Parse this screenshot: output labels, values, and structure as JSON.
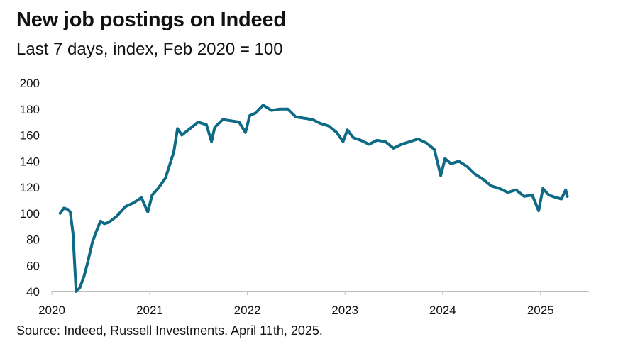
{
  "chart_data": {
    "type": "line",
    "title": "New job postings on Indeed",
    "subtitle": "Last 7 days, index, Feb 2020 = 100",
    "source": "Source: Indeed, Russell Investments. April 11th, 2025.",
    "xlabel": "",
    "ylabel": "",
    "xlim": [
      "2020-01-01",
      "2025-07-01"
    ],
    "ylim": [
      40,
      200
    ],
    "x_ticks": [
      "2020",
      "2021",
      "2022",
      "2023",
      "2024",
      "2025"
    ],
    "y_ticks": [
      "40",
      "60",
      "80",
      "100",
      "120",
      "140",
      "160",
      "180",
      "200"
    ],
    "grid": false,
    "line_color": "#0e6a85",
    "series": [
      {
        "points": [
          [
            "2020-02-01",
            100
          ],
          [
            "2020-02-15",
            104
          ],
          [
            "2020-03-01",
            103
          ],
          [
            "2020-03-10",
            101
          ],
          [
            "2020-03-20",
            85
          ],
          [
            "2020-04-01",
            40
          ],
          [
            "2020-04-15",
            43
          ],
          [
            "2020-05-01",
            52
          ],
          [
            "2020-05-15",
            63
          ],
          [
            "2020-06-01",
            78
          ],
          [
            "2020-06-15",
            86
          ],
          [
            "2020-07-01",
            94
          ],
          [
            "2020-07-15",
            92
          ],
          [
            "2020-08-01",
            93
          ],
          [
            "2020-09-01",
            98
          ],
          [
            "2020-10-01",
            105
          ],
          [
            "2020-11-01",
            108
          ],
          [
            "2020-12-01",
            112
          ],
          [
            "2020-12-25",
            101
          ],
          [
            "2021-01-10",
            114
          ],
          [
            "2021-02-01",
            119
          ],
          [
            "2021-03-01",
            127
          ],
          [
            "2021-04-01",
            147
          ],
          [
            "2021-04-15",
            165
          ],
          [
            "2021-05-01",
            160
          ],
          [
            "2021-06-01",
            165
          ],
          [
            "2021-07-01",
            170
          ],
          [
            "2021-08-01",
            168
          ],
          [
            "2021-08-20",
            155
          ],
          [
            "2021-09-01",
            166
          ],
          [
            "2021-10-01",
            172
          ],
          [
            "2021-11-01",
            171
          ],
          [
            "2021-12-01",
            170
          ],
          [
            "2021-12-25",
            162
          ],
          [
            "2022-01-10",
            175
          ],
          [
            "2022-02-01",
            177
          ],
          [
            "2022-03-01",
            183
          ],
          [
            "2022-04-01",
            179
          ],
          [
            "2022-05-01",
            180
          ],
          [
            "2022-06-01",
            180
          ],
          [
            "2022-07-01",
            174
          ],
          [
            "2022-08-01",
            173
          ],
          [
            "2022-09-01",
            172
          ],
          [
            "2022-10-01",
            169
          ],
          [
            "2022-11-01",
            167
          ],
          [
            "2022-12-01",
            162
          ],
          [
            "2022-12-25",
            155
          ],
          [
            "2023-01-10",
            164
          ],
          [
            "2023-02-01",
            158
          ],
          [
            "2023-03-01",
            156
          ],
          [
            "2023-04-01",
            153
          ],
          [
            "2023-05-01",
            156
          ],
          [
            "2023-06-01",
            155
          ],
          [
            "2023-07-01",
            150
          ],
          [
            "2023-08-01",
            153
          ],
          [
            "2023-09-01",
            155
          ],
          [
            "2023-10-01",
            157
          ],
          [
            "2023-11-01",
            154
          ],
          [
            "2023-12-01",
            149
          ],
          [
            "2023-12-25",
            129
          ],
          [
            "2024-01-10",
            142
          ],
          [
            "2024-02-01",
            138
          ],
          [
            "2024-03-01",
            140
          ],
          [
            "2024-04-01",
            136
          ],
          [
            "2024-05-01",
            130
          ],
          [
            "2024-06-01",
            126
          ],
          [
            "2024-07-01",
            121
          ],
          [
            "2024-08-01",
            119
          ],
          [
            "2024-09-01",
            116
          ],
          [
            "2024-10-01",
            118
          ],
          [
            "2024-11-01",
            113
          ],
          [
            "2024-12-01",
            114
          ],
          [
            "2024-12-25",
            102
          ],
          [
            "2025-01-10",
            119
          ],
          [
            "2025-02-01",
            114
          ],
          [
            "2025-03-01",
            112
          ],
          [
            "2025-03-20",
            111
          ],
          [
            "2025-04-05",
            118
          ],
          [
            "2025-04-11",
            113
          ]
        ]
      }
    ]
  }
}
